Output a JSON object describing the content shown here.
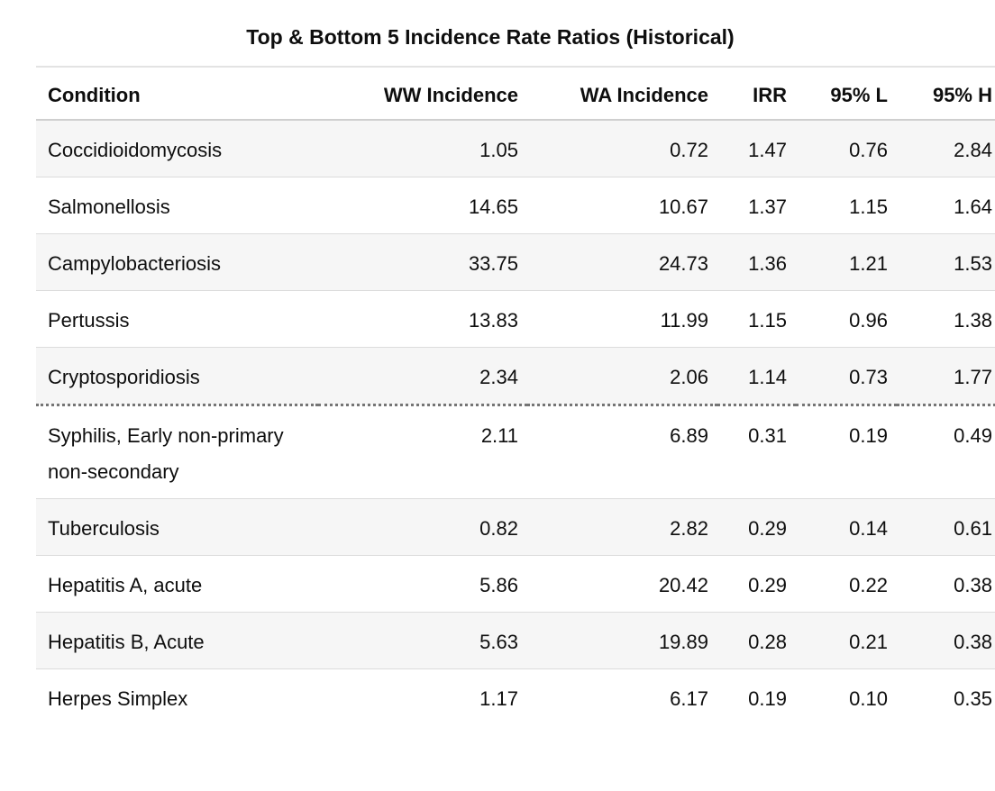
{
  "chart_data": {
    "type": "table",
    "title": "Top & Bottom 5 Incidence Rate Ratios (Historical)",
    "columns": [
      "Condition",
      "WW Incidence",
      "WA Incidence",
      "IRR",
      "95% L",
      "95% H"
    ],
    "rows": [
      [
        "Coccidioidomycosis",
        "1.05",
        "0.72",
        "1.47",
        "0.76",
        "2.84"
      ],
      [
        "Salmonellosis",
        "14.65",
        "10.67",
        "1.37",
        "1.15",
        "1.64"
      ],
      [
        "Campylobacteriosis",
        "33.75",
        "24.73",
        "1.36",
        "1.21",
        "1.53"
      ],
      [
        "Pertussis",
        "13.83",
        "11.99",
        "1.15",
        "0.96",
        "1.38"
      ],
      [
        "Cryptosporidiosis",
        "2.34",
        "2.06",
        "1.14",
        "0.73",
        "1.77"
      ],
      [
        "Syphilis, Early non-primary non-secondary",
        "2.11",
        "6.89",
        "0.31",
        "0.19",
        "0.49"
      ],
      [
        "Tuberculosis",
        "0.82",
        "2.82",
        "0.29",
        "0.14",
        "0.61"
      ],
      [
        "Hepatitis A, acute",
        "5.86",
        "20.42",
        "0.29",
        "0.22",
        "0.38"
      ],
      [
        "Hepatitis B, Acute",
        "5.63",
        "19.89",
        "0.28",
        "0.21",
        "0.38"
      ],
      [
        "Herpes Simplex",
        "1.17",
        "6.17",
        "0.19",
        "0.10",
        "0.35"
      ]
    ],
    "layout": {
      "zebra_striping": "odd data rows shaded",
      "divider_after_row": 5,
      "divider_style": "dotted",
      "numeric_columns_align": "right"
    }
  },
  "colors": {
    "background": "#ffffff",
    "text": "#0e0e0e",
    "row_stripe": "#f6f6f6",
    "row_border": "#dcdcdc",
    "header_top_rule": "#e3e3e3",
    "header_bottom_rule": "#cfcfcf",
    "dotted_divider": "#757575"
  }
}
